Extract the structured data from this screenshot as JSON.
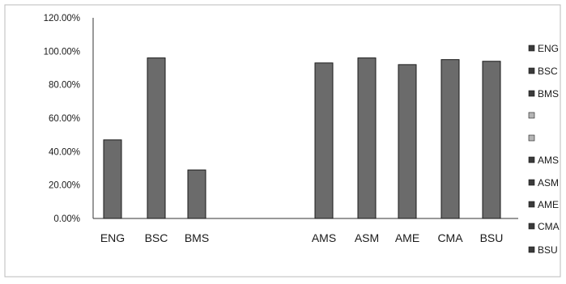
{
  "chart_data": {
    "type": "bar",
    "categories": [
      "ENG",
      "BSC",
      "BMS",
      "",
      "",
      "AMS",
      "ASM",
      "AME",
      "CMA",
      "BSU"
    ],
    "values": [
      0.47,
      0.96,
      0.29,
      null,
      null,
      0.93,
      0.96,
      0.92,
      0.95,
      0.94
    ],
    "yticks": [
      "0.00%",
      "20.00%",
      "40.00%",
      "60.00%",
      "80.00%",
      "100.00%",
      "120.00%"
    ],
    "ylim": [
      0,
      1.2
    ],
    "legend": {
      "position": "right",
      "entries": [
        "ENG",
        "BSC",
        "BMS",
        "",
        "",
        "AMS",
        "ASM",
        "AME",
        "CMA",
        "BSU"
      ]
    },
    "grid": false,
    "colors": {
      "bar_fill": "#6b6b6b",
      "bar_stroke": "#1a1a1a",
      "axis": "#333333",
      "border": "#bbbbbb"
    }
  }
}
